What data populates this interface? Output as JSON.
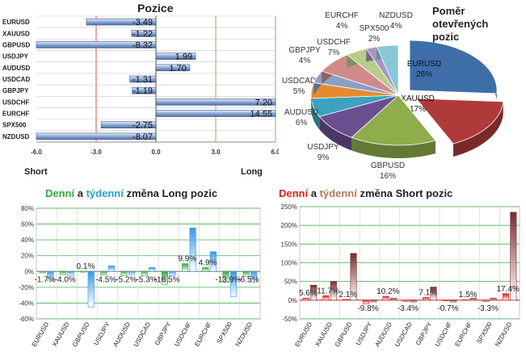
{
  "chart_data": [
    {
      "type": "bar",
      "orientation": "horizontal",
      "title": "Pozice",
      "categories": [
        "EURUSD",
        "XAUUSD",
        "GBPUSD",
        "USDJPY",
        "AUDUSD",
        "USDCAD",
        "GBPJPY",
        "USDCHF",
        "EURCHF",
        "SPX500",
        "NZDUSD"
      ],
      "values": [
        -3.49,
        -1.22,
        -8.32,
        1.99,
        1.7,
        -1.31,
        -1.19,
        7.2,
        14.55,
        -2.75,
        -8.07
      ],
      "value_labels": [
        "-3.49",
        "-1.22",
        "-8.32",
        "1.99",
        "1.70",
        "-1.31",
        "-1.19",
        "7.20",
        "14.55",
        "-2.75",
        "-8.07"
      ],
      "xlim": [
        -6.0,
        6.0
      ],
      "x_ticks": [
        "-6.0",
        "-3.0",
        "0.0",
        "3.0",
        "6.0"
      ],
      "left_label": "Short",
      "right_label": "Long"
    },
    {
      "type": "pie",
      "title_lines": [
        "Poměr",
        "otevřených",
        "pozic"
      ],
      "slices": [
        {
          "label": "EURUSD",
          "value": 26,
          "text": "26%",
          "color": "#3d6ea8"
        },
        {
          "label": "XAUUSD",
          "value": 17,
          "text": "17%",
          "color": "#b03a39"
        },
        {
          "label": "GBPUSD",
          "value": 16,
          "text": "16%",
          "color": "#8fad4b"
        },
        {
          "label": "USDJPY",
          "value": 9,
          "text": "9%",
          "color": "#6b4e90"
        },
        {
          "label": "AUDUSD",
          "value": 6,
          "text": "6%",
          "color": "#3ba3bd"
        },
        {
          "label": "USDCAD",
          "value": 5,
          "text": "5%",
          "color": "#e58a2f"
        },
        {
          "label": "GBPJPY",
          "value": 4,
          "text": "4%",
          "color": "#8a9fc7"
        },
        {
          "label": "USDCHF",
          "value": 7,
          "text": "7%",
          "color": "#cf8b8a"
        },
        {
          "label": "EURCHF",
          "value": 4,
          "text": "4%",
          "color": "#b7cc8a"
        },
        {
          "label": "SPX500",
          "value": 2,
          "text": "2%",
          "color": "#a996c0"
        },
        {
          "label": "NZDUSD",
          "value": 4,
          "text": "4%",
          "color": "#86c8d8"
        }
      ]
    },
    {
      "type": "bar",
      "title_parts": {
        "a": "Denní",
        "b": " a ",
        "c": "týdenní",
        "d": " změna Long pozic"
      },
      "categories": [
        "EURUSD",
        "XAUUSD",
        "GBPUSD",
        "USDJPY",
        "AUDUSD",
        "USDCAD",
        "GBPJPY",
        "USDCHF",
        "EURCHF",
        "SPX500",
        "NZDUSD"
      ],
      "series": [
        {
          "name": "Denní",
          "color": "#3aa548",
          "values": [
            -1.7,
            -4.0,
            0.1,
            -4.5,
            -5.2,
            -5.3,
            -16.5,
            9.9,
            4.9,
            -13.9,
            -6.5
          ]
        },
        {
          "name": "Týdenní",
          "color": "#3b97e6",
          "values": [
            -12,
            -5,
            -45,
            7,
            -4,
            5,
            -5,
            55,
            25,
            -32,
            -14
          ]
        }
      ],
      "data_labels": [
        "-1.7%",
        "-4.0%",
        "0.1%",
        "-4.5%",
        "-5.2%",
        "-5.3%",
        "-16.5%",
        "9.9%",
        "4.9%",
        "-13.9%",
        "-6.5%"
      ],
      "ylim": [
        -60,
        80
      ],
      "y_ticks": [
        "80%",
        "60%",
        "40%",
        "20%",
        "0%",
        "-20%",
        "-40%",
        "-60%"
      ]
    },
    {
      "type": "bar",
      "title_parts": {
        "a": "Denní",
        "b": " a ",
        "c": "týdenní",
        "d": " změna Short pozic"
      },
      "categories": [
        "EURUSD",
        "XAUUSD",
        "GBPUSD",
        "USDJPY",
        "AUDUSD",
        "USDCAD",
        "GBPJPY",
        "USDCHF",
        "EURCHF",
        "SPX500",
        "NZDUSD"
      ],
      "series": [
        {
          "name": "Denní",
          "color": "#d42020",
          "values": [
            5.6,
            11.7,
            2.1,
            -9.8,
            10.2,
            -3.4,
            7.1,
            -0.7,
            1.5,
            -3.3,
            17.4
          ]
        },
        {
          "name": "Týdenní",
          "color": "#7a2a2a",
          "values": [
            40,
            50,
            125,
            -5,
            5,
            -5,
            35,
            -5,
            5,
            5,
            235
          ]
        }
      ],
      "data_labels": [
        "5.6%",
        "11.7%",
        "2.1%",
        "-9.8%",
        "10.2%",
        "-3.4%",
        "7.1%",
        "-0.7%",
        "1.5%",
        "-3.3%",
        "17.4%"
      ],
      "ylim": [
        -50,
        250
      ],
      "y_ticks": [
        "250%",
        "200%",
        "150%",
        "100%",
        "50%",
        "0%",
        "-50%"
      ]
    }
  ]
}
